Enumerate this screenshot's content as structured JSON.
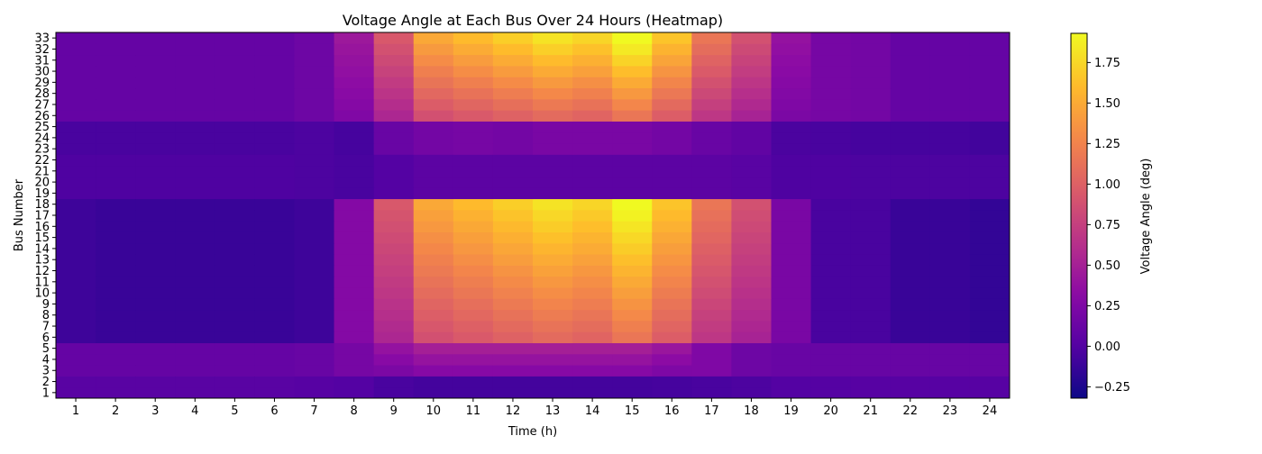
{
  "chart_data": {
    "type": "heatmap",
    "title": "Voltage Angle at Each Bus Over 24 Hours (Heatmap)",
    "xlabel": "Time (h)",
    "ylabel": "Bus Number",
    "colorbar_label": "Voltage Angle (deg)",
    "colormap": "plasma",
    "vmin": -0.32,
    "vmax": 1.93,
    "x": [
      1,
      2,
      3,
      4,
      5,
      6,
      7,
      8,
      9,
      10,
      11,
      12,
      13,
      14,
      15,
      16,
      17,
      18,
      19,
      20,
      21,
      22,
      23,
      24
    ],
    "y": [
      1,
      2,
      3,
      4,
      5,
      6,
      7,
      8,
      9,
      10,
      11,
      12,
      13,
      14,
      15,
      16,
      17,
      18,
      19,
      20,
      21,
      22,
      23,
      24,
      25,
      26,
      27,
      28,
      29,
      30,
      31,
      32,
      33
    ],
    "colorbar_ticks": [
      -0.25,
      0.0,
      0.25,
      0.5,
      0.75,
      1.0,
      1.25,
      1.5,
      1.75
    ],
    "colorbar_tick_labels": [
      "−0.25",
      "0.00",
      "0.25",
      "0.50",
      "0.75",
      "1.00",
      "1.25",
      "1.50",
      "1.75"
    ],
    "bus_groups": [
      {
        "buses": [
          1,
          2
        ],
        "load_profile": [
          0.03,
          0.03,
          0.03,
          0.03,
          0.03,
          0.03,
          0.02,
          0.0,
          -0.05,
          -0.07,
          -0.07,
          -0.07,
          -0.07,
          -0.07,
          -0.07,
          -0.06,
          -0.05,
          -0.03,
          0.0,
          0.01,
          0.02,
          0.02,
          0.02,
          0.02
        ]
      },
      {
        "buses": [
          3,
          4,
          5
        ],
        "load_profile": [
          0.1,
          0.1,
          0.1,
          0.1,
          0.1,
          0.1,
          0.12,
          0.2,
          0.35,
          0.45,
          0.45,
          0.45,
          0.45,
          0.45,
          0.45,
          0.38,
          0.25,
          0.15,
          0.12,
          0.11,
          0.11,
          0.11,
          0.11,
          0.11
        ]
      },
      {
        "buses": [
          6,
          7,
          8,
          9,
          10,
          11,
          12,
          13,
          14,
          15,
          16,
          17,
          18
        ],
        "load_profile": [
          -0.1,
          -0.12,
          -0.12,
          -0.12,
          -0.12,
          -0.12,
          -0.1,
          0.28,
          0.85,
          1.35,
          1.45,
          1.55,
          1.65,
          1.58,
          1.78,
          1.5,
          1.05,
          0.8,
          0.22,
          -0.05,
          -0.05,
          -0.12,
          -0.12,
          -0.15
        ]
      },
      {
        "buses": [
          19,
          20,
          21,
          22
        ],
        "load_profile": [
          -0.02,
          -0.02,
          -0.02,
          -0.02,
          -0.02,
          -0.02,
          -0.03,
          -0.05,
          0.0,
          0.05,
          0.05,
          0.05,
          0.05,
          0.05,
          0.05,
          0.05,
          0.05,
          0.03,
          -0.02,
          -0.02,
          -0.03,
          -0.03,
          -0.03,
          -0.03
        ]
      },
      {
        "buses": [
          23,
          24,
          25
        ],
        "load_profile": [
          -0.05,
          -0.05,
          -0.05,
          -0.05,
          -0.05,
          -0.05,
          -0.03,
          -0.06,
          0.12,
          0.18,
          0.2,
          0.18,
          0.22,
          0.22,
          0.22,
          0.18,
          0.12,
          0.08,
          -0.04,
          -0.05,
          -0.06,
          -0.06,
          -0.06,
          -0.08
        ]
      },
      {
        "buses": [
          26,
          27,
          28,
          29,
          30,
          31,
          32,
          33
        ],
        "load_profile": [
          0.1,
          0.1,
          0.1,
          0.1,
          0.1,
          0.1,
          0.15,
          0.4,
          0.85,
          1.35,
          1.45,
          1.55,
          1.65,
          1.58,
          1.78,
          1.5,
          1.05,
          0.8,
          0.35,
          0.2,
          0.18,
          0.1,
          0.1,
          0.1
        ]
      }
    ],
    "note_values": "Cell value = load_profile[hour] scaled by bus position within group"
  }
}
